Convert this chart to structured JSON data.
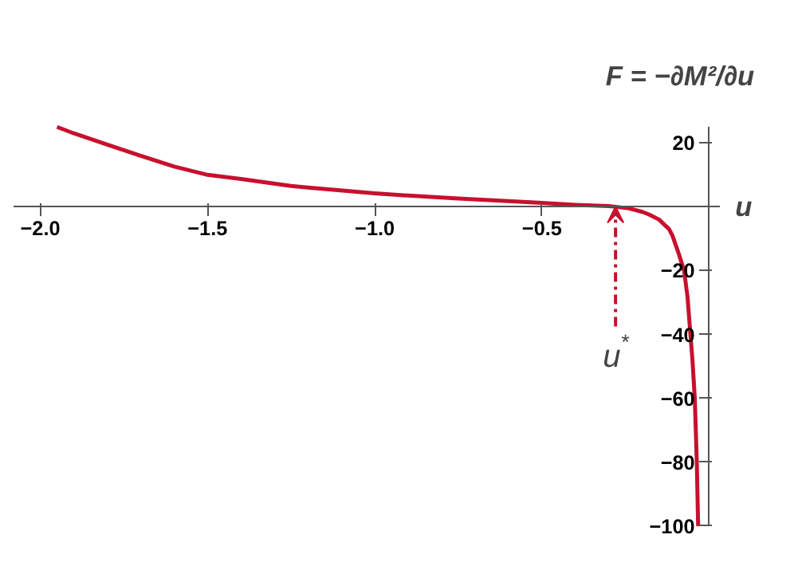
{
  "chart_data": {
    "type": "line",
    "xlabel": "u",
    "ylabel": "F = −∂M²/∂u",
    "x": [
      -1.95,
      -1.9,
      -1.8,
      -1.7,
      -1.6,
      -1.5,
      -1.4,
      -1.25,
      -1.2,
      -1.0,
      -0.9,
      -0.75,
      -0.6,
      -0.5,
      -0.4,
      -0.35,
      -0.3,
      -0.28,
      -0.24,
      -0.2,
      -0.18,
      -0.15,
      -0.14,
      -0.12,
      -0.11,
      -0.1,
      -0.09,
      -0.075,
      -0.065,
      -0.056,
      -0.05,
      -0.043,
      -0.037,
      -0.033
    ],
    "series": [
      {
        "color": "#c8102e",
        "values": [
          25,
          23,
          19.5,
          16,
          12.6,
          10,
          8.7,
          6.5,
          6.0,
          4.2,
          3.5,
          2.6,
          1.8,
          1.2,
          0.6,
          0.4,
          0.2,
          0,
          -0.5,
          -1.6,
          -2.4,
          -4,
          -5,
          -7,
          -9,
          -12,
          -15,
          -20,
          -28,
          -40,
          -48,
          -60,
          -80,
          -100
        ]
      }
    ],
    "xlim": [
      -2.08,
      0.03
    ],
    "ylim": [
      -100,
      25
    ],
    "xticks": [
      {
        "value": -2.0,
        "label": "−2.0"
      },
      {
        "value": -1.5,
        "label": "−1.5"
      },
      {
        "value": -1.0,
        "label": "−1.0"
      },
      {
        "value": -0.5,
        "label": "−0.5"
      }
    ],
    "yticks": [
      20,
      {
        "value": -20,
        "label": "−20"
      },
      {
        "value": -40,
        "label": "−40"
      },
      {
        "value": -60,
        "label": "−60"
      },
      {
        "value": -80,
        "label": "−80"
      },
      {
        "value": -100,
        "label": "−100"
      }
    ],
    "annotations": [
      {
        "text": "u$^{*}$",
        "x": -0.28,
        "y": 0
      }
    ],
    "grid": false,
    "marker": "none",
    "line_style": "solid"
  }
}
